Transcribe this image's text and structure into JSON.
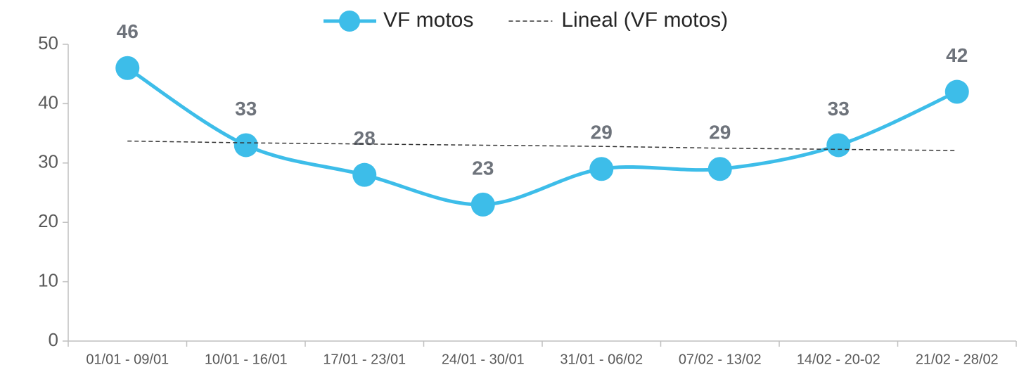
{
  "chart_data": {
    "type": "line",
    "categories": [
      "01/01 - 09/01",
      "10/01 - 16/01",
      "17/01 - 23/01",
      "24/01 - 30/01",
      "31/01 - 06/02",
      "07/02 - 13/02",
      "14/02 - 20-02",
      "21/02 - 28/02"
    ],
    "series": [
      {
        "name": "VF motos",
        "color": "#3dbde9",
        "values": [
          46,
          33,
          28,
          23,
          29,
          29,
          33,
          42
        ],
        "smooth": true,
        "markers": true,
        "data_labels": true
      },
      {
        "name": "Lineal (VF motos)",
        "color": "#333333",
        "values": [
          33.7,
          33.4,
          33.2,
          33.0,
          32.8,
          32.5,
          32.3,
          32.1
        ],
        "dashed": true
      }
    ],
    "ylim": [
      0,
      50
    ],
    "yticks": [
      0,
      10,
      20,
      30,
      40,
      50
    ],
    "grid": false,
    "legend": "top"
  }
}
